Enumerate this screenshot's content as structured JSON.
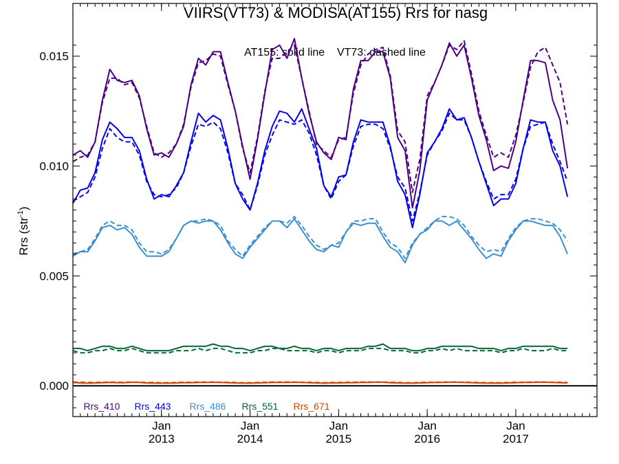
{
  "chart_data": {
    "type": "line",
    "title": "VIIRS(VT73) & MODISA(AT155)  Rrs for nasg",
    "annotation": "AT155: solid line    VT73: dashed line",
    "ylabel": "Rrs (str",
    "ylabel_sup": "-1",
    "ylabel_tail": ")",
    "ylim": [
      -0.0014,
      0.0174
    ],
    "yticks": [
      0.0,
      0.005,
      0.01,
      0.015
    ],
    "ytick_labels": [
      "0.000",
      "0.005",
      "0.010",
      "0.015"
    ],
    "x_range_months": [
      "2012-01",
      "2017-12"
    ],
    "xticks": [
      {
        "date": "2013-01",
        "label": "Jan",
        "year": "2013"
      },
      {
        "date": "2014-01",
        "label": "Jan",
        "year": "2014"
      },
      {
        "date": "2015-01",
        "label": "Jan",
        "year": "2015"
      },
      {
        "date": "2016-01",
        "label": "Jan",
        "year": "2016"
      },
      {
        "date": "2017-01",
        "label": "Jan",
        "year": "2017"
      }
    ],
    "x_dates": [
      "2012-01",
      "2012-02",
      "2012-03",
      "2012-04",
      "2012-05",
      "2012-06",
      "2012-07",
      "2012-08",
      "2012-09",
      "2012-10",
      "2012-11",
      "2012-12",
      "2013-01",
      "2013-02",
      "2013-03",
      "2013-04",
      "2013-05",
      "2013-06",
      "2013-07",
      "2013-08",
      "2013-09",
      "2013-10",
      "2013-11",
      "2013-12",
      "2014-01",
      "2014-02",
      "2014-03",
      "2014-04",
      "2014-05",
      "2014-06",
      "2014-07",
      "2014-08",
      "2014-09",
      "2014-10",
      "2014-11",
      "2014-12",
      "2015-01",
      "2015-02",
      "2015-03",
      "2015-04",
      "2015-05",
      "2015-06",
      "2015-07",
      "2015-08",
      "2015-09",
      "2015-10",
      "2015-11",
      "2015-12",
      "2016-01",
      "2016-02",
      "2016-03",
      "2016-04",
      "2016-05",
      "2016-06",
      "2016-07",
      "2016-08",
      "2016-09",
      "2016-10",
      "2016-11",
      "2016-12",
      "2017-01",
      "2017-02",
      "2017-03",
      "2017-04",
      "2017-05",
      "2017-06",
      "2017-07",
      "2017-08",
      "2017-09",
      "2017-10",
      "2017-11",
      "2017-12"
    ],
    "zero_line": true,
    "grid": false,
    "legend_position": "bottom-left",
    "series": [
      {
        "name": "Rrs_410",
        "color": "#4b0082",
        "style": "solid",
        "values": [
          0.0105,
          0.0107,
          0.0104,
          0.0111,
          0.013,
          0.0144,
          0.0139,
          0.0138,
          0.0139,
          0.0132,
          0.0117,
          0.0105,
          0.0106,
          0.0104,
          0.011,
          0.0118,
          0.0137,
          0.0149,
          0.0146,
          0.0152,
          0.0152,
          0.0138,
          0.0125,
          0.0109,
          0.0094,
          0.0112,
          0.0133,
          0.0153,
          0.0155,
          0.0149,
          0.0158,
          0.014,
          0.0124,
          0.0111,
          0.0106,
          0.0103,
          0.0113,
          0.0112,
          0.0135,
          0.0148,
          0.0148,
          0.0152,
          0.0152,
          0.014,
          0.0113,
          0.0107,
          0.0081,
          0.0098,
          0.013,
          0.0138,
          0.0146,
          0.0156,
          0.015,
          0.0155,
          0.014,
          0.0123,
          0.0112,
          0.0098,
          0.01,
          0.0099,
          0.0111,
          0.013,
          0.0148,
          0.0148,
          0.0147,
          0.013,
          0.0121,
          0.0099,
          null,
          null,
          null,
          null
        ]
      },
      {
        "name": "Rrs_410",
        "color": "#4b0082",
        "style": "dashed",
        "values": [
          0.0102,
          0.0104,
          0.0105,
          0.0111,
          0.0129,
          0.014,
          0.014,
          0.0137,
          0.0138,
          0.0131,
          0.0118,
          0.0106,
          0.0104,
          0.0106,
          0.011,
          0.0119,
          0.0136,
          0.0147,
          0.0148,
          0.0151,
          0.015,
          0.0137,
          0.0125,
          0.0108,
          0.0097,
          0.0113,
          0.0134,
          0.0149,
          0.0149,
          0.0152,
          0.0155,
          0.014,
          0.0125,
          0.011,
          0.0107,
          0.0104,
          0.0112,
          0.0113,
          0.0133,
          0.0146,
          0.0151,
          0.0153,
          0.0154,
          0.0141,
          0.0116,
          0.0111,
          0.0088,
          0.0103,
          0.0132,
          0.0138,
          0.0146,
          0.0155,
          0.0153,
          0.0157,
          0.0142,
          0.0125,
          0.0114,
          0.0104,
          0.0106,
          0.0104,
          0.0114,
          0.0129,
          0.0145,
          0.0152,
          0.0154,
          0.0146,
          0.0138,
          0.0119,
          null,
          null,
          null,
          null
        ]
      },
      {
        "name": "Rrs_443",
        "color": "#0000ee",
        "style": "solid",
        "values": [
          0.0083,
          0.0089,
          0.009,
          0.0097,
          0.0112,
          0.012,
          0.0117,
          0.0113,
          0.0113,
          0.0107,
          0.0094,
          0.0085,
          0.0087,
          0.0086,
          0.0091,
          0.0097,
          0.0111,
          0.0124,
          0.012,
          0.0123,
          0.0121,
          0.0108,
          0.0092,
          0.0085,
          0.008,
          0.0092,
          0.0107,
          0.0118,
          0.0125,
          0.0124,
          0.012,
          0.0126,
          0.0117,
          0.0108,
          0.0091,
          0.0086,
          0.0095,
          0.0096,
          0.0111,
          0.0121,
          0.012,
          0.012,
          0.012,
          0.0109,
          0.0093,
          0.0087,
          0.0072,
          0.0087,
          0.0106,
          0.0111,
          0.0117,
          0.0126,
          0.0121,
          0.0122,
          0.0113,
          0.0102,
          0.0092,
          0.0082,
          0.0085,
          0.0085,
          0.0092,
          0.0108,
          0.0121,
          0.012,
          0.012,
          0.0107,
          0.01,
          0.0086,
          null,
          null,
          null,
          null
        ]
      },
      {
        "name": "Rrs_443",
        "color": "#0000ee",
        "style": "dashed",
        "values": [
          0.0084,
          0.0086,
          0.0088,
          0.0095,
          0.0108,
          0.0117,
          0.0113,
          0.0111,
          0.0111,
          0.0105,
          0.0093,
          0.0087,
          0.0086,
          0.0087,
          0.009,
          0.0097,
          0.0109,
          0.0119,
          0.0118,
          0.012,
          0.0117,
          0.0106,
          0.0092,
          0.0087,
          0.008,
          0.0091,
          0.0105,
          0.0114,
          0.0121,
          0.012,
          0.0119,
          0.0121,
          0.0115,
          0.0105,
          0.0091,
          0.0085,
          0.0093,
          0.0096,
          0.0109,
          0.0118,
          0.0119,
          0.0119,
          0.0117,
          0.0108,
          0.0095,
          0.009,
          0.0075,
          0.0088,
          0.0105,
          0.0111,
          0.0116,
          0.0124,
          0.0121,
          0.0121,
          0.0113,
          0.0102,
          0.0093,
          0.0085,
          0.0087,
          0.0087,
          0.0094,
          0.0108,
          0.0118,
          0.0119,
          0.012,
          0.011,
          0.0102,
          0.0093,
          null,
          null,
          null,
          null
        ]
      },
      {
        "name": "Rrs_486",
        "color": "#3a8fd0",
        "style": "solid",
        "values": [
          0.0059,
          0.0061,
          0.0061,
          0.0066,
          0.0072,
          0.0073,
          0.0071,
          0.0072,
          0.0069,
          0.0063,
          0.0059,
          0.0059,
          0.0059,
          0.0061,
          0.0067,
          0.0073,
          0.0075,
          0.0074,
          0.0075,
          0.0075,
          0.0071,
          0.0065,
          0.006,
          0.0058,
          0.0063,
          0.0067,
          0.0071,
          0.0075,
          0.0075,
          0.0072,
          0.0076,
          0.0071,
          0.0066,
          0.0062,
          0.0061,
          0.0064,
          0.0063,
          0.007,
          0.0074,
          0.0073,
          0.0074,
          0.0074,
          0.0068,
          0.0063,
          0.0061,
          0.0056,
          0.0064,
          0.0069,
          0.0071,
          0.0075,
          0.0075,
          0.0073,
          0.0075,
          0.0071,
          0.0067,
          0.0062,
          0.0058,
          0.006,
          0.0059,
          0.0066,
          0.0071,
          0.0075,
          0.0075,
          0.0074,
          0.0073,
          0.0073,
          0.0068,
          0.006,
          null,
          null,
          null,
          null
        ]
      },
      {
        "name": "Rrs_486",
        "color": "#3a8fd0",
        "style": "dashed",
        "values": [
          0.006,
          0.0061,
          0.0062,
          0.0067,
          0.0073,
          0.0075,
          0.0073,
          0.0073,
          0.0071,
          0.0065,
          0.0061,
          0.0061,
          0.006,
          0.0062,
          0.0067,
          0.0073,
          0.0075,
          0.0075,
          0.0076,
          0.0075,
          0.0073,
          0.0066,
          0.0062,
          0.0059,
          0.0064,
          0.0068,
          0.0072,
          0.0075,
          0.0075,
          0.0074,
          0.0077,
          0.0073,
          0.0068,
          0.0064,
          0.0062,
          0.0064,
          0.0065,
          0.007,
          0.0075,
          0.0075,
          0.0076,
          0.0076,
          0.007,
          0.0065,
          0.0063,
          0.0058,
          0.0065,
          0.0069,
          0.0072,
          0.0075,
          0.0077,
          0.0077,
          0.0076,
          0.0073,
          0.0068,
          0.0064,
          0.0061,
          0.0062,
          0.0061,
          0.0067,
          0.0072,
          0.0075,
          0.0076,
          0.0076,
          0.0075,
          0.0074,
          0.0071,
          0.0066,
          null,
          null,
          null,
          null
        ]
      },
      {
        "name": "Rrs_551",
        "color": "#006633",
        "style": "solid",
        "values": [
          0.0017,
          0.0017,
          0.0016,
          0.0017,
          0.0018,
          0.0018,
          0.0017,
          0.0017,
          0.0018,
          0.0017,
          0.0016,
          0.0016,
          0.0016,
          0.0016,
          0.0017,
          0.0018,
          0.0018,
          0.0018,
          0.0018,
          0.0019,
          0.0018,
          0.0018,
          0.0017,
          0.0017,
          0.0016,
          0.0017,
          0.0018,
          0.0018,
          0.0017,
          0.0017,
          0.0018,
          0.0017,
          0.0017,
          0.0016,
          0.0017,
          0.0017,
          0.0016,
          0.0017,
          0.0017,
          0.0017,
          0.0018,
          0.0018,
          0.0019,
          0.0017,
          0.0017,
          0.0017,
          0.0016,
          0.0016,
          0.0017,
          0.0017,
          0.0018,
          0.0018,
          0.0018,
          0.0018,
          0.0018,
          0.0017,
          0.0017,
          0.0017,
          0.0016,
          0.0017,
          0.0017,
          0.0018,
          0.0018,
          0.0018,
          0.0018,
          0.0018,
          0.0017,
          0.0017,
          null,
          null,
          null,
          null
        ]
      },
      {
        "name": "Rrs_551",
        "color": "#006633",
        "style": "dashed",
        "values": [
          0.0016,
          0.0015,
          0.0015,
          0.0016,
          0.0016,
          0.0017,
          0.0016,
          0.0016,
          0.0017,
          0.0016,
          0.0015,
          0.0015,
          0.0015,
          0.0015,
          0.0016,
          0.0016,
          0.0016,
          0.0017,
          0.0016,
          0.0017,
          0.0017,
          0.0016,
          0.0015,
          0.0015,
          0.0015,
          0.0016,
          0.0016,
          0.0017,
          0.0017,
          0.0016,
          0.0016,
          0.0016,
          0.0016,
          0.0015,
          0.0016,
          0.0016,
          0.0015,
          0.0016,
          0.0016,
          0.0016,
          0.0017,
          0.0017,
          0.0017,
          0.0016,
          0.0016,
          0.0016,
          0.0015,
          0.0015,
          0.0016,
          0.0016,
          0.0017,
          0.0016,
          0.0017,
          0.0016,
          0.0016,
          0.0016,
          0.0016,
          0.0016,
          0.0015,
          0.0016,
          0.0016,
          0.0017,
          0.0016,
          0.0016,
          0.0016,
          0.0017,
          0.0016,
          0.0016,
          null,
          null,
          null,
          null
        ]
      },
      {
        "name": "Rrs_671",
        "color": "#cc4400",
        "style": "solid",
        "values": [
          0.00015,
          0.00013,
          0.00012,
          0.00013,
          0.00014,
          0.00015,
          0.00014,
          0.00014,
          0.00016,
          0.00015,
          0.00013,
          0.00012,
          0.00012,
          0.00012,
          0.00013,
          0.00014,
          0.00014,
          0.00015,
          0.00015,
          0.00016,
          0.00015,
          0.00014,
          0.00013,
          0.00012,
          0.00012,
          0.00013,
          0.00014,
          0.00015,
          0.00015,
          0.00015,
          0.00016,
          0.00015,
          0.00014,
          0.00013,
          0.00012,
          0.00013,
          0.00013,
          0.00014,
          0.00014,
          0.00015,
          0.00015,
          0.00016,
          0.00016,
          0.00014,
          0.00013,
          0.00012,
          0.00012,
          0.00013,
          0.00014,
          0.00015,
          0.00015,
          0.00016,
          0.00016,
          0.00015,
          0.00014,
          0.00013,
          0.00012,
          0.00012,
          0.00012,
          0.00013,
          0.00014,
          0.00015,
          0.00015,
          0.00016,
          0.00016,
          0.00015,
          0.00014,
          0.00013,
          null,
          null,
          null,
          null
        ]
      },
      {
        "name": "Rrs_671",
        "color": "#cc4400",
        "style": "dashed",
        "values": [
          0.00017,
          0.00016,
          0.00015,
          0.00015,
          0.00016,
          0.00017,
          0.00016,
          0.00016,
          0.00017,
          0.00016,
          0.00015,
          0.00015,
          0.00014,
          0.00014,
          0.00015,
          0.00016,
          0.00016,
          0.00017,
          0.00017,
          0.00017,
          0.00016,
          0.00016,
          0.00015,
          0.00014,
          0.00014,
          0.00015,
          0.00016,
          0.00017,
          0.00017,
          0.00017,
          0.00017,
          0.00016,
          0.00016,
          0.00015,
          0.00014,
          0.00015,
          0.00015,
          0.00016,
          0.00016,
          0.00017,
          0.00017,
          0.00017,
          0.00017,
          0.00016,
          0.00015,
          0.00014,
          0.00014,
          0.00015,
          0.00016,
          0.00016,
          0.00017,
          0.00017,
          0.00017,
          0.00016,
          0.00016,
          0.00015,
          0.00014,
          0.00014,
          0.00014,
          0.00015,
          0.00016,
          0.00016,
          0.00017,
          0.00017,
          0.00017,
          0.00016,
          0.00016,
          0.00015,
          null,
          null,
          null,
          null
        ]
      }
    ],
    "legend": [
      {
        "label": "Rrs_410",
        "color": "#4b0082"
      },
      {
        "label": "Rrs_443",
        "color": "#0000ee"
      },
      {
        "label": "Rrs_486",
        "color": "#3a8fd0"
      },
      {
        "label": "Rrs_551",
        "color": "#006633"
      },
      {
        "label": "Rrs_671",
        "color": "#cc4400"
      }
    ]
  }
}
